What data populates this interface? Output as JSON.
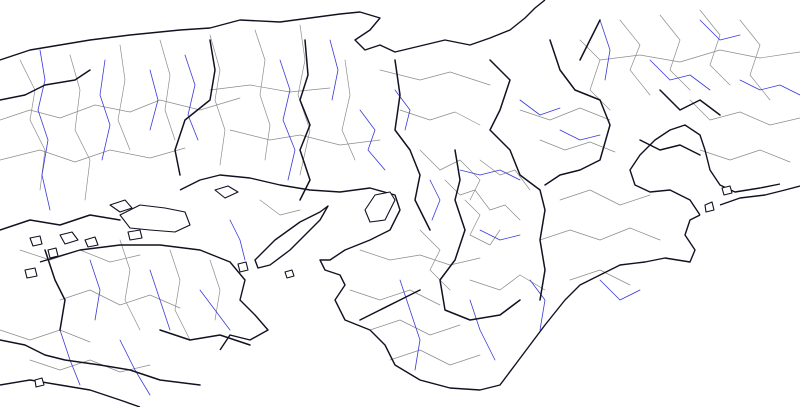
{
  "colors": {
    "background": "#ffffff",
    "prefecture_border": "#111122",
    "municipal_border": "#8c8c8c",
    "river": "#3a3ad8",
    "coastline": "#111122"
  },
  "layers": [
    "prefecture-borders",
    "municipal-borders",
    "rivers",
    "coastline",
    "islands"
  ]
}
